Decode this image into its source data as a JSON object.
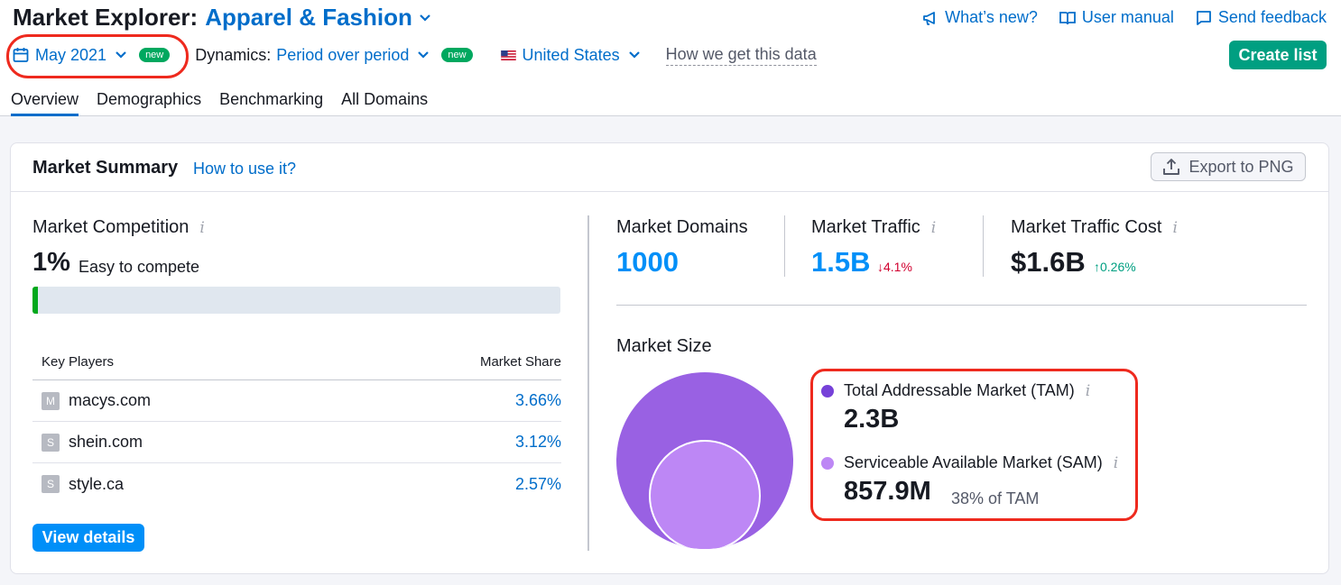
{
  "header": {
    "title_prefix": "Market Explorer:",
    "category": "Apparel & Fashion",
    "links": [
      {
        "label": "What’s new?",
        "icon": "megaphone-icon"
      },
      {
        "label": "User manual",
        "icon": "book-icon"
      },
      {
        "label": "Send feedback",
        "icon": "feedback-icon"
      }
    ]
  },
  "filters": {
    "date": "May 2021",
    "date_badge": "new",
    "dynamics_label": "Dynamics:",
    "dynamics_value": "Period over period",
    "dynamics_badge": "new",
    "country": "United States",
    "how_data": "How we get this data",
    "create_list": "Create list"
  },
  "tabs": [
    {
      "label": "Overview",
      "active": true
    },
    {
      "label": "Demographics",
      "active": false
    },
    {
      "label": "Benchmarking",
      "active": false
    },
    {
      "label": "All Domains",
      "active": false
    }
  ],
  "summary": {
    "title": "Market Summary",
    "how_to": "How to use it?",
    "export": "Export to PNG",
    "competition": {
      "label": "Market Competition",
      "value": "1%",
      "desc": "Easy to compete",
      "level": 0.01
    },
    "key_players": {
      "col_player": "Key Players",
      "col_share": "Market Share",
      "rows": [
        {
          "favicon": "M",
          "domain": "macys.com",
          "share": "3.66%"
        },
        {
          "favicon": "S",
          "domain": "shein.com",
          "share": "3.12%"
        },
        {
          "favicon": "S",
          "domain": "style.ca",
          "share": "2.57%"
        }
      ]
    },
    "view_details": "View details",
    "metrics": {
      "domains": {
        "label": "Market Domains",
        "value": "1000"
      },
      "traffic": {
        "label": "Market Traffic",
        "value": "1.5B",
        "delta": "4.1%"
      },
      "cost": {
        "label": "Market Traffic Cost",
        "value": "$1.6B",
        "delta": "0.26%"
      }
    },
    "market_size": {
      "label": "Market Size",
      "tam_label": "Total Addressable Market (TAM)",
      "tam_value": "2.3B",
      "sam_label": "Serviceable Available Market (SAM)",
      "sam_value": "857.9M",
      "sam_note": "38% of TAM"
    }
  },
  "colors": {
    "accent": "#006dca",
    "tam": "#7641d8",
    "sam": "#bd87f5",
    "highlight": "#ee2a1e"
  }
}
